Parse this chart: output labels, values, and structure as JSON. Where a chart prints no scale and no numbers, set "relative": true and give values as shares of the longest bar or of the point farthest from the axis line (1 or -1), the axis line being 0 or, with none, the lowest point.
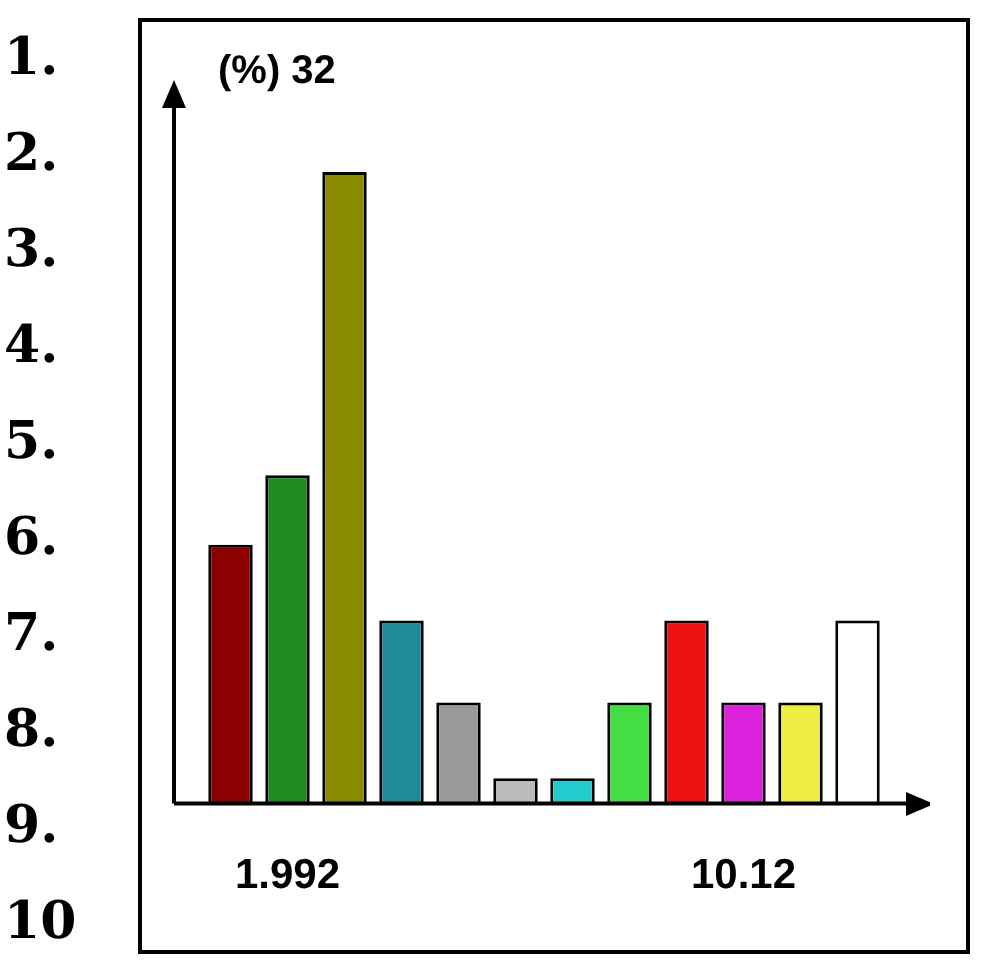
{
  "chart_data": {
    "type": "bar",
    "ylabel": "(%) 32",
    "categories": [
      null,
      "1.992",
      null,
      null,
      null,
      null,
      null,
      null,
      null,
      "10.12",
      null,
      null
    ],
    "values": [
      0.41,
      0.52,
      1,
      0.29,
      0.16,
      0.04,
      0.04,
      0.16,
      0.29,
      0.16,
      0.16,
      0.29
    ],
    "colors": [
      "#8b0000",
      "#1e8b1e",
      "#8b8b00",
      "#1e8b9b",
      "#999999",
      "#bbbbbb",
      "#22cccc",
      "#44dd44",
      "#ee1111",
      "#dd22dd",
      "#eeee44",
      "#ffffff"
    ],
    "relative": true,
    "annotations": [
      "1.",
      "2.",
      "3.",
      "4.",
      "5.",
      "6.",
      "7.",
      "8.",
      "9.",
      "10"
    ]
  }
}
